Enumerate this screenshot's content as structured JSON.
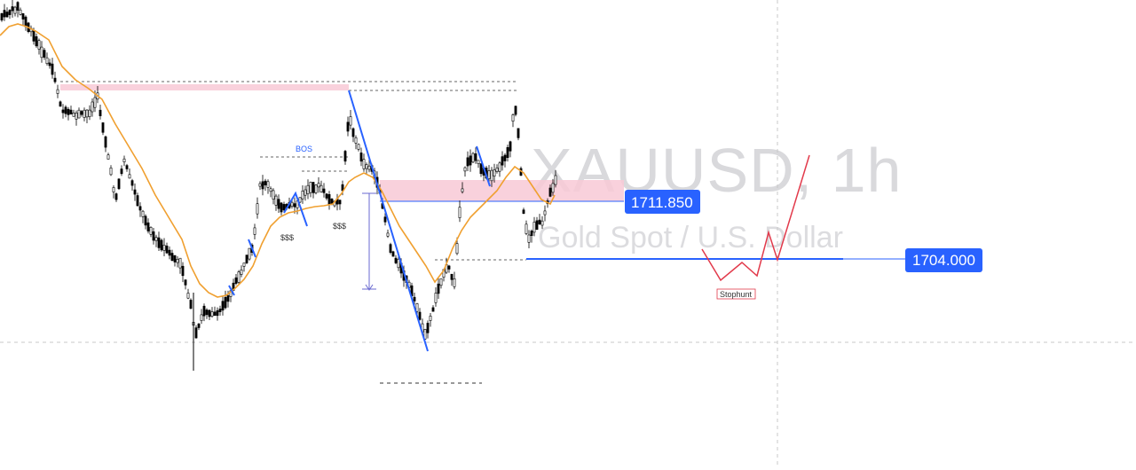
{
  "watermark": {
    "symbol": "XAUUSD, 1h",
    "description": "Gold Spot / U.S. Dollar"
  },
  "price_tags": [
    {
      "label": "1711.850",
      "color": "#2962ff"
    },
    {
      "label": "1704.000",
      "color": "#2962ff"
    }
  ],
  "annotations": {
    "bos": "BOS",
    "liquidity_1": "$$$",
    "liquidity_2": "$$$",
    "stophunt": "Stophunt"
  },
  "colors": {
    "candle": "#000000",
    "moving_average": "#f0a030",
    "trendline": "#2962ff",
    "supply_zone": "#f8c9d6",
    "projection": "#e23a4b",
    "grid_dashed": "#c8c8c8"
  },
  "chart_data": {
    "type": "candlestick",
    "symbol": "XAUUSD",
    "timeframe": "1h",
    "price_levels": [
      1711.85,
      1704.0
    ],
    "moving_average_visible": true,
    "y_axis_visible": false,
    "x_axis_visible": false,
    "legend_visible": false,
    "notes": [
      "BOS",
      "$$$",
      "$$$",
      "Stophunt"
    ]
  }
}
